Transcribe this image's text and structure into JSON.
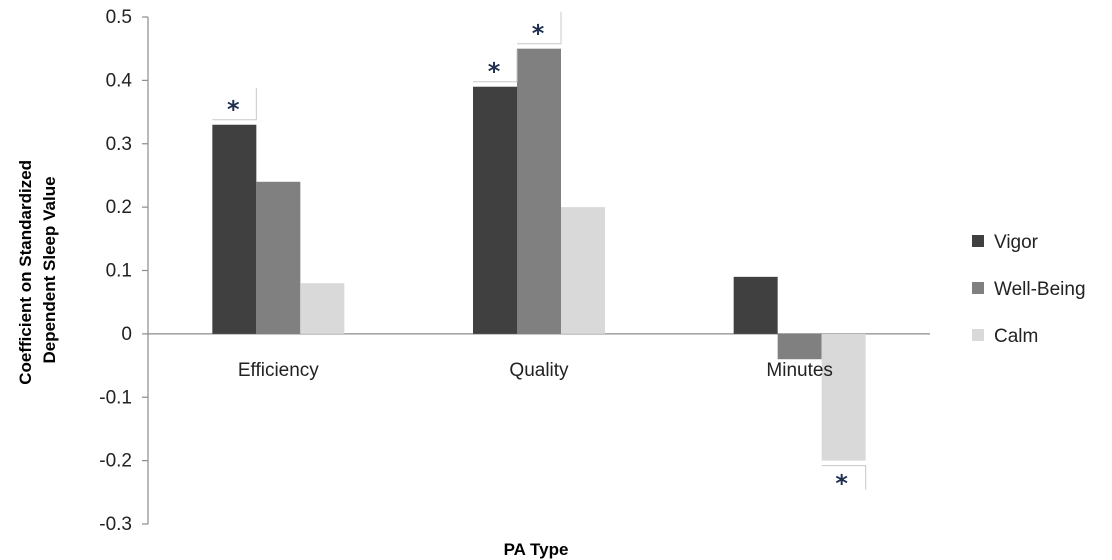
{
  "chart_data": {
    "type": "bar",
    "title": "",
    "xlabel": "PA Type",
    "ylabel": "Coefficient on Standardized Dependent Sleep Value",
    "ylabel_lines": [
      "Coefficient on Standardized",
      "Dependent Sleep Value"
    ],
    "categories": [
      "Efficiency",
      "Quality",
      "Minutes"
    ],
    "series": [
      {
        "name": "Vigor",
        "color": "#404040",
        "values": [
          0.33,
          0.39,
          0.09
        ]
      },
      {
        "name": "Well-Being",
        "color": "#808080",
        "values": [
          0.24,
          0.45,
          -0.04
        ]
      },
      {
        "name": "Calm",
        "color": "#d9d9d9",
        "values": [
          0.08,
          0.2,
          -0.2
        ]
      }
    ],
    "ylim": [
      -0.3,
      0.5
    ],
    "yticks": [
      0.5,
      0.4,
      0.3,
      0.2,
      0.1,
      0,
      -0.1,
      -0.2,
      -0.3
    ],
    "ytick_labels": [
      "0.5",
      "0.4",
      "0.3",
      "0.2",
      "0.1",
      "0",
      "-0.1",
      "-0.2",
      "-0.3"
    ],
    "grid": false,
    "legend_position": "right",
    "significance_marker": "*",
    "significant": [
      {
        "category": "Efficiency",
        "series": "Vigor"
      },
      {
        "category": "Quality",
        "series": "Vigor"
      },
      {
        "category": "Quality",
        "series": "Well-Being"
      },
      {
        "category": "Minutes",
        "series": "Calm"
      }
    ]
  }
}
